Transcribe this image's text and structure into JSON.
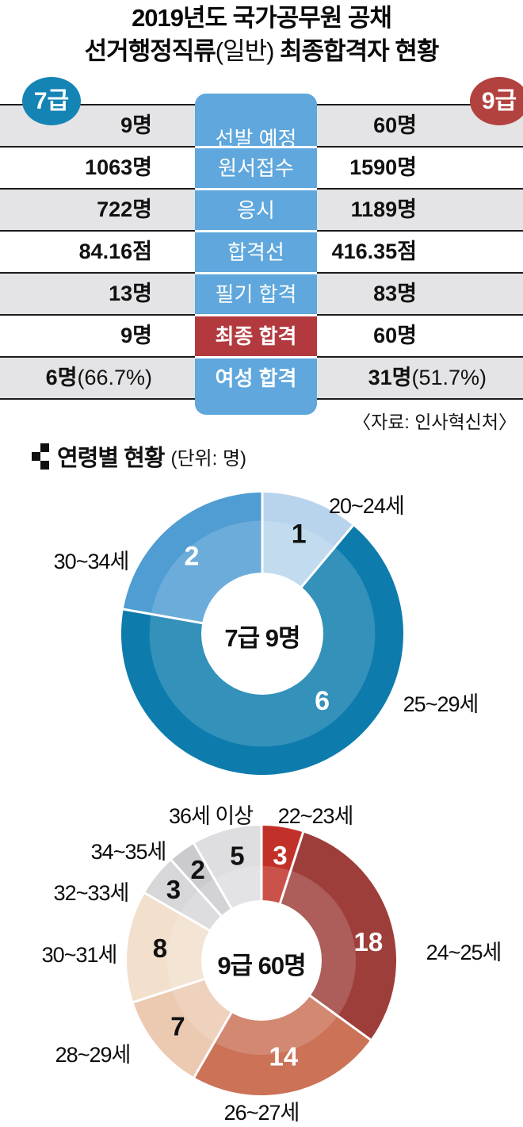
{
  "header": {
    "line1": "2019년도 국가공무원 공채",
    "line2_a": "선거행정직류",
    "line2_b": "(일반)",
    "line2_c": " 최종합격자 현황"
  },
  "badges": {
    "grade7": "7급",
    "grade9": "9급"
  },
  "table": {
    "rows": [
      {
        "label": "선발 예정",
        "left": "9명",
        "left_sub": "",
        "right": "60명",
        "right_sub": ""
      },
      {
        "label": "원서접수",
        "left": "1063명",
        "left_sub": "",
        "right": "1590명",
        "right_sub": ""
      },
      {
        "label": "응시",
        "left": "722명",
        "left_sub": "",
        "right": "1189명",
        "right_sub": ""
      },
      {
        "label": "합격선",
        "left": "84.16점",
        "left_sub": "",
        "right": "416.35점",
        "right_sub": ""
      },
      {
        "label": "필기 합격",
        "left": "13명",
        "left_sub": "",
        "right": "83명",
        "right_sub": ""
      },
      {
        "label": "최종 합격",
        "left": "9명",
        "left_sub": "",
        "right": "60명",
        "right_sub": ""
      },
      {
        "label": "여성 합격",
        "left": "6명",
        "left_sub": "(66.7%)",
        "right": "31명",
        "right_sub": "(51.7%)"
      }
    ],
    "highlight_color": "#b23a3e",
    "pill_color": "#5fa7dc"
  },
  "source": "〈자료: 인사혁신처〉",
  "section": {
    "title": "연령별 현황",
    "unit": "(단위: 명)"
  },
  "chart_data": [
    {
      "type": "donut",
      "title": "7급 9명",
      "unit": "명",
      "categories": [
        "20~24세",
        "25~29세",
        "30~34세"
      ],
      "values": [
        1,
        6,
        2
      ],
      "colors": [
        "#b7d4ec",
        "#0d7cad",
        "#4f9dd3"
      ],
      "label_colors": [
        "#111111",
        "#ffffff",
        "#ffffff"
      ],
      "label_angles": [
        20,
        138,
        318
      ],
      "label_radii": [
        135,
        113,
        133
      ],
      "legend_position": "outside",
      "grid": false
    },
    {
      "type": "donut",
      "title": "9급 60명",
      "unit": "명",
      "categories": [
        "22~23세",
        "24~25세",
        "26~27세",
        "28~29세",
        "30~31세",
        "32~33세",
        "34~35세",
        "36세 이상"
      ],
      "values": [
        3,
        18,
        14,
        7,
        8,
        3,
        2,
        5
      ],
      "colors": [
        "#c23129",
        "#9e3e3b",
        "#cb7257",
        "#eccab2",
        "#f2dfcc",
        "#d7d7da",
        "#cbcbcf",
        "#dedee1"
      ],
      "label_colors": [
        "#ffffff",
        "#ffffff",
        "#ffffff",
        "#111111",
        "#111111",
        "#111111",
        "#111111",
        "#111111"
      ],
      "label_angles": [
        10,
        80,
        167,
        232,
        277,
        309,
        325,
        347
      ],
      "label_radii": [
        135,
        137,
        124,
        134,
        129,
        143,
        140,
        136
      ],
      "legend_position": "outside",
      "grid": false
    }
  ]
}
